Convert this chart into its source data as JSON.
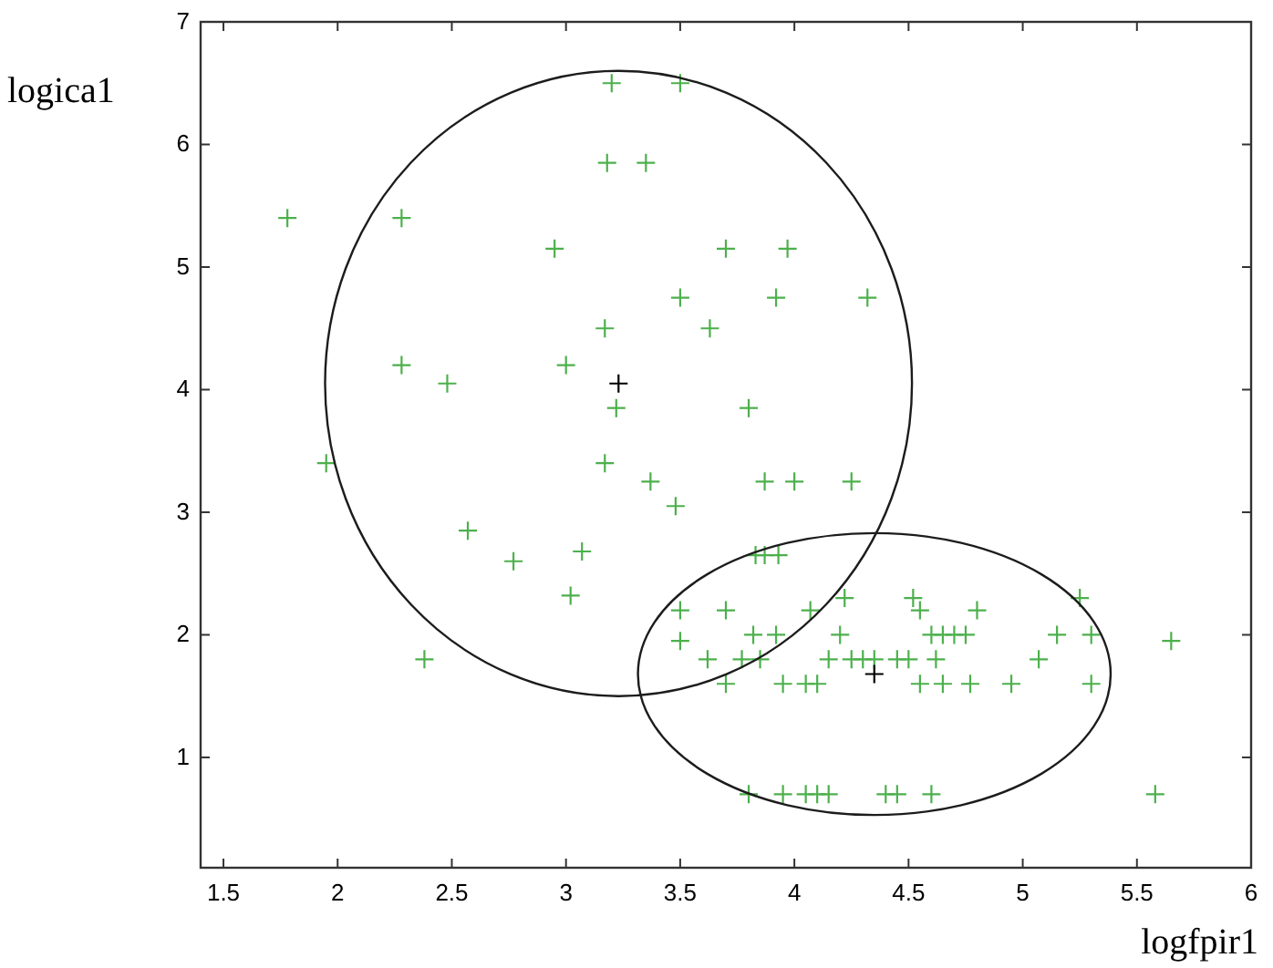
{
  "chart_data": {
    "type": "scatter",
    "xlabel": "logfpir1",
    "ylabel": "logica1",
    "xlim": [
      1.4,
      6
    ],
    "ylim": [
      0.1,
      7
    ],
    "xticks": [
      1.5,
      2,
      2.5,
      3,
      3.5,
      4,
      4.5,
      5,
      5.5,
      6
    ],
    "yticks": [
      1,
      2,
      3,
      4,
      5,
      6,
      7
    ],
    "marker": "cross",
    "series": [
      {
        "color": "#4cb04c",
        "x": [
          1.78,
          1.95,
          2.28,
          2.28,
          2.48,
          2.38,
          2.57,
          2.77,
          2.95,
          3.0,
          3.02,
          3.07,
          3.17,
          3.17,
          3.18,
          3.2,
          3.22,
          3.35,
          3.37,
          3.48,
          3.5,
          3.5,
          3.63,
          3.7,
          3.8,
          3.92,
          3.97,
          4.32,
          3.83,
          3.87,
          3.93,
          3.87,
          4.0,
          4.25,
          3.5,
          3.5,
          3.62,
          3.7,
          3.7,
          3.77,
          3.82,
          3.85,
          3.95,
          3.92,
          4.05,
          4.1,
          4.15,
          4.07,
          4.2,
          4.22,
          4.25,
          4.3,
          4.35,
          4.45,
          4.52,
          4.55,
          4.5,
          4.55,
          4.6,
          4.65,
          4.7,
          4.75,
          4.62,
          4.65,
          4.8,
          4.77,
          4.95,
          5.07,
          5.15,
          5.25,
          5.3,
          5.3,
          5.65,
          5.58,
          3.8,
          3.95,
          4.05,
          4.1,
          4.15,
          4.4,
          4.45,
          4.6
        ],
        "values": [
          5.4,
          3.4,
          5.4,
          4.2,
          4.05,
          1.8,
          2.85,
          2.6,
          5.15,
          4.2,
          2.32,
          2.68,
          3.4,
          4.5,
          5.85,
          6.5,
          3.85,
          5.85,
          3.25,
          3.05,
          6.5,
          4.75,
          4.5,
          5.15,
          3.85,
          4.75,
          5.15,
          4.75,
          2.65,
          2.65,
          2.65,
          3.25,
          3.25,
          3.25,
          2.2,
          1.95,
          1.8,
          2.2,
          1.6,
          1.8,
          2.0,
          1.8,
          1.6,
          2.0,
          1.6,
          1.6,
          1.8,
          2.2,
          2.0,
          2.3,
          1.8,
          1.8,
          1.8,
          1.8,
          2.3,
          2.2,
          1.8,
          1.6,
          2.0,
          2.0,
          2.0,
          2.0,
          1.8,
          1.6,
          2.2,
          1.6,
          1.6,
          1.8,
          2.0,
          2.3,
          2.0,
          1.6,
          1.95,
          0.7,
          0.7,
          0.7,
          0.7,
          0.7,
          0.7,
          0.7,
          0.7,
          0.7
        ]
      },
      {
        "color": "#000000",
        "x": [
          3.23,
          4.35
        ],
        "values": [
          4.05,
          1.68
        ]
      }
    ]
  }
}
